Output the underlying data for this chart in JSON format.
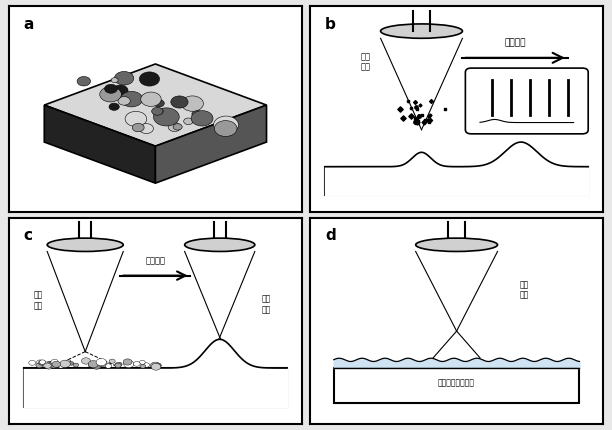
{
  "bg_color": "#e8e8e8",
  "panel_bg": "#ffffff",
  "border_color": "#000000",
  "label_a": "a",
  "label_b": "b",
  "label_c": "c",
  "label_d": "d",
  "text_scan_dir_b": "扫描方向",
  "text_ps_laser_b": "皮秒\n激光",
  "text_scan_dir_c": "扫描方向",
  "text_ns_laser_c": "纳秒\n激光",
  "text_ps_laser_c": "皮秒\n激光",
  "text_ns_laser_d": "纳秒\n激光",
  "text_pool_d": "大液滴的液膜覆盖"
}
